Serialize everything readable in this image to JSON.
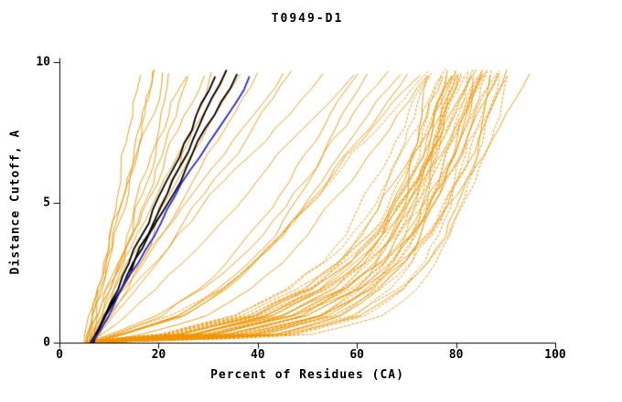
{
  "title": "T0949-D1",
  "axes": {
    "x": {
      "label": "Percent of Residues (CA)",
      "min": 0,
      "max": 100,
      "ticks": [
        0,
        20,
        40,
        60,
        80,
        100
      ]
    },
    "y": {
      "label": "Distance Cutoff, A",
      "min": 0,
      "max": 10,
      "ticks": [
        0,
        5,
        10
      ]
    }
  },
  "chart_data": {
    "type": "line",
    "title": "T0949-D1",
    "xlabel": "Percent of Residues (CA)",
    "ylabel": "Distance Cutoff, A",
    "xlim": [
      0,
      100
    ],
    "ylim": [
      0,
      10
    ],
    "x_ticks": [
      0,
      20,
      40,
      60,
      80,
      100
    ],
    "y_ticks": [
      0,
      5,
      10
    ],
    "grid": false,
    "legend": "none",
    "colors": {
      "o": "#ef9400",
      "k": "#000000",
      "b": "#2a2ae0"
    },
    "color_roles": {
      "o": "model-curves",
      "k": "highlighted-model-curves",
      "b": "highlighted-model-curve-blue"
    },
    "y_levels": [
      0,
      0.3,
      0.97,
      1.94,
      2.91,
      3.88,
      4.85,
      5.82,
      6.79,
      7.76,
      8.73,
      9.7
    ],
    "templates": {
      "early": [
        0,
        0.03,
        0.1,
        0.2,
        0.3,
        0.4,
        0.5,
        0.6,
        0.7,
        0.8,
        0.9,
        1
      ],
      "mid": [
        0,
        0.1,
        0.28,
        0.42,
        0.52,
        0.6,
        0.67,
        0.74,
        0.8,
        0.87,
        0.93,
        1
      ],
      "late": [
        0,
        0.35,
        0.55,
        0.68,
        0.76,
        0.815,
        0.855,
        0.89,
        0.92,
        0.945,
        0.97,
        1
      ],
      "lin": [
        0,
        0.03,
        0.1,
        0.2,
        0.3,
        0.4,
        0.5,
        0.6,
        0.7,
        0.8,
        0.9,
        1
      ]
    },
    "series": [
      {
        "c": "o",
        "t": "early",
        "x0": 5.0,
        "xt": 17.0,
        "w": 1.0,
        "s": 1,
        "d": 0
      },
      {
        "c": "o",
        "t": "early",
        "x0": 5.5,
        "xt": 18.5,
        "w": 0.9,
        "s": 2,
        "d": 0
      },
      {
        "c": "o",
        "t": "early",
        "x0": 6.0,
        "xt": 20.0,
        "w": 1.1,
        "s": 3,
        "d": 0
      },
      {
        "c": "o",
        "t": "early",
        "x0": 5.2,
        "xt": 21.5,
        "w": 1.0,
        "s": 4,
        "d": 0
      },
      {
        "c": "o",
        "t": "early",
        "x0": 6.5,
        "xt": 23.0,
        "w": 0.85,
        "s": 5,
        "d": 0
      },
      {
        "c": "o",
        "t": "early",
        "x0": 5.8,
        "xt": 25.0,
        "w": 1.15,
        "s": 6,
        "d": 0
      },
      {
        "c": "o",
        "t": "early",
        "x0": 6.2,
        "xt": 27.0,
        "w": 0.95,
        "s": 7,
        "d": 0
      },
      {
        "c": "o",
        "t": "early",
        "x0": 5.4,
        "xt": 29.0,
        "w": 1.05,
        "s": 8,
        "d": 0
      },
      {
        "c": "o",
        "t": "early",
        "x0": 6.8,
        "xt": 31.0,
        "w": 0.9,
        "s": 9,
        "d": 0
      },
      {
        "c": "o",
        "t": "early",
        "x0": 5.6,
        "xt": 34.0,
        "w": 1.1,
        "s": 10,
        "d": 0
      },
      {
        "c": "o",
        "t": "early",
        "x0": 6.0,
        "xt": 37.0,
        "w": 1.0,
        "s": 11,
        "d": 0
      },
      {
        "c": "o",
        "t": "early",
        "x0": 6.4,
        "xt": 40.0,
        "w": 0.92,
        "s": 12,
        "d": 0
      },
      {
        "c": "o",
        "t": "early",
        "x0": 5.9,
        "xt": 44.0,
        "w": 1.08,
        "s": 13,
        "d": 0
      },
      {
        "c": "o",
        "t": "early",
        "x0": 6.1,
        "xt": 48.0,
        "w": 0.97,
        "s": 14,
        "d": 0
      },
      {
        "c": "o",
        "t": "early",
        "x0": 6.6,
        "xt": 53.0,
        "w": 1.12,
        "s": 15,
        "d": 0
      },
      {
        "c": "o",
        "t": "early",
        "x0": 5.7,
        "xt": 58.0,
        "w": 0.88,
        "s": 16,
        "d": 0
      },
      {
        "c": "o",
        "t": "mid",
        "x0": 6.0,
        "xt": 60.0,
        "w": 1.0,
        "s": 17,
        "d": 0
      },
      {
        "c": "o",
        "t": "mid",
        "x0": 6.3,
        "xt": 63.0,
        "w": 0.9,
        "s": 18,
        "d": 0
      },
      {
        "c": "o",
        "t": "mid",
        "x0": 5.8,
        "xt": 66.0,
        "w": 1.1,
        "s": 19,
        "d": 0
      },
      {
        "c": "o",
        "t": "mid",
        "x0": 6.5,
        "xt": 69.0,
        "w": 0.95,
        "s": 20,
        "d": 0
      },
      {
        "c": "o",
        "t": "mid",
        "x0": 6.1,
        "xt": 72.0,
        "w": 1.05,
        "s": 21,
        "d": 0
      },
      {
        "c": "o",
        "t": "mid",
        "x0": 6.7,
        "xt": 74.0,
        "w": 0.85,
        "s": 22,
        "d": 0
      },
      {
        "c": "o",
        "t": "mid",
        "x0": 5.9,
        "xt": 75.0,
        "w": 1.15,
        "s": 23,
        "d": 1
      },
      {
        "c": "o",
        "t": "mid",
        "x0": 6.2,
        "xt": 70.0,
        "w": 1.0,
        "s": 24,
        "d": 0
      },
      {
        "c": "o",
        "t": "late",
        "x0": 5.6,
        "xt": 75.0,
        "w": 1.4,
        "s": 25,
        "d": 1
      },
      {
        "c": "o",
        "t": "late",
        "x0": 6.8,
        "xt": 75.5,
        "w": 0.7,
        "s": 26,
        "d": 0
      },
      {
        "c": "o",
        "t": "late",
        "x0": 6.0,
        "xt": 76.0,
        "w": 1.1,
        "s": 27,
        "d": 1
      },
      {
        "c": "o",
        "t": "late",
        "x0": 7.2,
        "xt": 76.5,
        "w": 0.9,
        "s": 28,
        "d": 1
      },
      {
        "c": "o",
        "t": "late",
        "x0": 5.8,
        "xt": 77.0,
        "w": 1.3,
        "s": 29,
        "d": 0
      },
      {
        "c": "o",
        "t": "late",
        "x0": 6.4,
        "xt": 77.5,
        "w": 0.6,
        "s": 30,
        "d": 1
      },
      {
        "c": "o",
        "t": "late",
        "x0": 7.0,
        "xt": 78.0,
        "w": 1.0,
        "s": 31,
        "d": 0
      },
      {
        "c": "o",
        "t": "late",
        "x0": 5.5,
        "xt": 78.5,
        "w": 1.5,
        "s": 32,
        "d": 1
      },
      {
        "c": "o",
        "t": "late",
        "x0": 6.6,
        "xt": 79.0,
        "w": 0.8,
        "s": 33,
        "d": 1
      },
      {
        "c": "o",
        "t": "late",
        "x0": 6.2,
        "xt": 79.5,
        "w": 1.2,
        "s": 34,
        "d": 0
      },
      {
        "c": "o",
        "t": "late",
        "x0": 5.6,
        "xt": 80.0,
        "w": 1.4,
        "s": 35,
        "d": 1
      },
      {
        "c": "o",
        "t": "late",
        "x0": 6.8,
        "xt": 80.3,
        "w": 0.7,
        "s": 36,
        "d": 0
      },
      {
        "c": "o",
        "t": "late",
        "x0": 6.0,
        "xt": 80.6,
        "w": 1.1,
        "s": 37,
        "d": 1
      },
      {
        "c": "o",
        "t": "late",
        "x0": 7.2,
        "xt": 81.0,
        "w": 0.9,
        "s": 38,
        "d": 1
      },
      {
        "c": "o",
        "t": "late",
        "x0": 5.8,
        "xt": 81.3,
        "w": 1.3,
        "s": 39,
        "d": 0
      },
      {
        "c": "o",
        "t": "late",
        "x0": 6.4,
        "xt": 81.6,
        "w": 0.6,
        "s": 40,
        "d": 1
      },
      {
        "c": "o",
        "t": "late",
        "x0": 7.0,
        "xt": 82.0,
        "w": 1.0,
        "s": 41,
        "d": 0
      },
      {
        "c": "o",
        "t": "late",
        "x0": 5.5,
        "xt": 82.3,
        "w": 1.5,
        "s": 42,
        "d": 1
      },
      {
        "c": "o",
        "t": "late",
        "x0": 6.6,
        "xt": 82.6,
        "w": 0.8,
        "s": 43,
        "d": 1
      },
      {
        "c": "o",
        "t": "late",
        "x0": 6.2,
        "xt": 83.0,
        "w": 1.2,
        "s": 44,
        "d": 0
      },
      {
        "c": "o",
        "t": "late",
        "x0": 5.6,
        "xt": 83.3,
        "w": 1.4,
        "s": 45,
        "d": 1
      },
      {
        "c": "o",
        "t": "late",
        "x0": 6.8,
        "xt": 83.6,
        "w": 0.7,
        "s": 46,
        "d": 0
      },
      {
        "c": "o",
        "t": "late",
        "x0": 6.0,
        "xt": 84.0,
        "w": 1.1,
        "s": 47,
        "d": 1
      },
      {
        "c": "o",
        "t": "late",
        "x0": 7.2,
        "xt": 84.3,
        "w": 0.9,
        "s": 48,
        "d": 1
      },
      {
        "c": "o",
        "t": "late",
        "x0": 5.8,
        "xt": 84.6,
        "w": 1.3,
        "s": 49,
        "d": 0
      },
      {
        "c": "o",
        "t": "late",
        "x0": 6.4,
        "xt": 85.0,
        "w": 0.6,
        "s": 50,
        "d": 1
      },
      {
        "c": "o",
        "t": "late",
        "x0": 7.0,
        "xt": 85.3,
        "w": 1.0,
        "s": 51,
        "d": 0
      },
      {
        "c": "o",
        "t": "late",
        "x0": 5.5,
        "xt": 85.6,
        "w": 1.5,
        "s": 52,
        "d": 1
      },
      {
        "c": "o",
        "t": "late",
        "x0": 6.6,
        "xt": 86.0,
        "w": 0.8,
        "s": 53,
        "d": 1
      },
      {
        "c": "o",
        "t": "late",
        "x0": 6.2,
        "xt": 86.5,
        "w": 1.2,
        "s": 54,
        "d": 0
      },
      {
        "c": "o",
        "t": "late",
        "x0": 5.6,
        "xt": 87.0,
        "w": 1.4,
        "s": 55,
        "d": 1
      },
      {
        "c": "o",
        "t": "late",
        "x0": 6.8,
        "xt": 87.5,
        "w": 0.7,
        "s": 56,
        "d": 0
      },
      {
        "c": "o",
        "t": "late",
        "x0": 6.0,
        "xt": 88.0,
        "w": 1.1,
        "s": 57,
        "d": 1
      },
      {
        "c": "o",
        "t": "late",
        "x0": 7.2,
        "xt": 88.5,
        "w": 0.9,
        "s": 58,
        "d": 1
      },
      {
        "c": "o",
        "t": "late",
        "x0": 5.8,
        "xt": 89.0,
        "w": 1.3,
        "s": 59,
        "d": 0
      },
      {
        "c": "o",
        "t": "late",
        "x0": 6.4,
        "xt": 89.5,
        "w": 0.6,
        "s": 60,
        "d": 1
      },
      {
        "c": "o",
        "t": "late",
        "x0": 7.0,
        "xt": 90.0,
        "w": 1.0,
        "s": 61,
        "d": 0
      },
      {
        "c": "o",
        "t": "late",
        "x0": 5.5,
        "xt": 91.0,
        "w": 1.5,
        "s": 62,
        "d": 1
      },
      {
        "c": "o",
        "t": "late",
        "x0": 6.6,
        "xt": 92.0,
        "w": 0.8,
        "s": 63,
        "d": 1
      },
      {
        "c": "o",
        "t": "late",
        "x0": 6.2,
        "xt": 93.5,
        "w": 1.2,
        "s": 64,
        "d": 0
      },
      {
        "c": "k",
        "t": "lin",
        "x0": 6.3,
        "xt": 31.0,
        "w": 1.0,
        "s": 65,
        "d": 0
      },
      {
        "c": "k",
        "t": "lin",
        "x0": 6.6,
        "xt": 33.5,
        "w": 0.95,
        "s": 66,
        "d": 0
      },
      {
        "c": "k",
        "t": "lin",
        "x0": 6.9,
        "xt": 35.5,
        "w": 1.05,
        "s": 67,
        "d": 0
      },
      {
        "c": "b",
        "t": "lin",
        "x0": 6.5,
        "xt": 38.0,
        "w": 1.0,
        "s": 68,
        "d": 0
      }
    ]
  }
}
